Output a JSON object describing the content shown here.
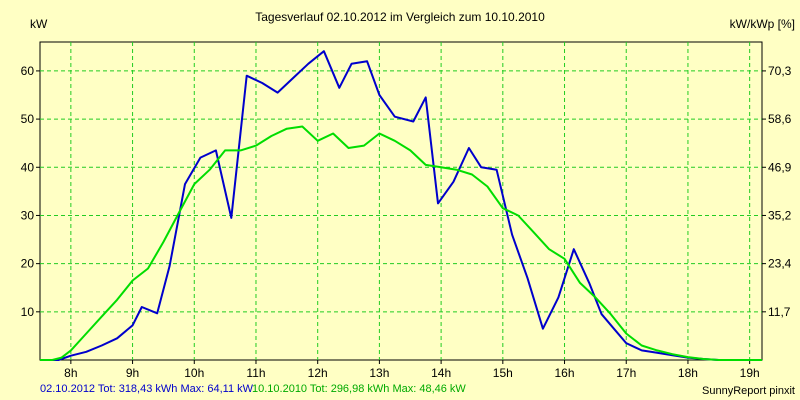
{
  "colors": {
    "background": "#ffffc4",
    "plot_bg": "#ffffc4",
    "grid": "#22cc22",
    "series_2012": "#0000cc",
    "series_2010": "#00dd00"
  },
  "footer": {
    "series_2012_summary": "02.10.2012 Tot: 318,43 kWh Max: 64,11 kW",
    "series_2010_summary": "10.10.2010 Tot: 296,98 kWh Max: 48,46 kW",
    "credit": "SunnyReport pinxit"
  },
  "chart_data": {
    "type": "line",
    "title": "Tagesverlauf 02.10.2012 im Vergleich zum 10.10.2010",
    "ylabel": "kW",
    "y2label": "kW/kWp [%]",
    "xlim": [
      7.5,
      19.2
    ],
    "ylim": [
      0,
      66
    ],
    "x_ticks": [
      8,
      9,
      10,
      11,
      12,
      13,
      14,
      15,
      16,
      17,
      18,
      19
    ],
    "x_tick_labels": [
      "8h",
      "9h",
      "10h",
      "11h",
      "12h",
      "13h",
      "14h",
      "15h",
      "16h",
      "17h",
      "18h",
      "19h"
    ],
    "y_ticks": [
      10,
      20,
      30,
      40,
      50,
      60
    ],
    "y_tick_labels": [
      "10",
      "20",
      "30",
      "40",
      "50",
      "60"
    ],
    "y2_ticks": [
      10,
      20,
      30,
      40,
      50,
      60
    ],
    "y2_tick_labels": [
      "11,7",
      "23,4",
      "35,2",
      "46,9",
      "58,6",
      "70,3"
    ],
    "grid": true,
    "series": [
      {
        "name": "02.10.2012",
        "color": "#0000cc",
        "x": [
          7.5,
          7.8,
          8.0,
          8.25,
          8.5,
          8.75,
          9.0,
          9.15,
          9.4,
          9.6,
          9.85,
          10.1,
          10.35,
          10.6,
          10.85,
          11.1,
          11.35,
          11.6,
          11.85,
          12.1,
          12.35,
          12.55,
          12.8,
          13.0,
          13.25,
          13.55,
          13.75,
          13.95,
          14.2,
          14.45,
          14.65,
          14.9,
          15.15,
          15.4,
          15.65,
          15.9,
          16.15,
          16.4,
          16.6,
          16.8,
          17.0,
          17.25,
          17.5,
          17.75,
          18.0,
          18.25,
          18.5,
          18.75,
          19.0,
          19.2
        ],
        "values": [
          0,
          0,
          0.9,
          1.7,
          3.0,
          4.5,
          7.2,
          11.0,
          9.7,
          19.5,
          36.5,
          42.0,
          43.5,
          29.5,
          59.0,
          57.5,
          55.5,
          58.5,
          61.5,
          64.1,
          56.5,
          61.5,
          62.0,
          55.0,
          50.5,
          49.5,
          54.5,
          32.5,
          37.0,
          44.0,
          40.0,
          39.5,
          26.0,
          17.0,
          6.5,
          13.0,
          23.0,
          16.0,
          9.5,
          6.5,
          3.5,
          2.0,
          1.5,
          1.0,
          0.5,
          0.2,
          0,
          0,
          0,
          0
        ]
      },
      {
        "name": "10.10.2010",
        "color": "#00dd00",
        "x": [
          7.5,
          7.7,
          7.85,
          8.0,
          8.25,
          8.5,
          8.75,
          9.0,
          9.25,
          9.5,
          9.75,
          10.0,
          10.25,
          10.5,
          10.75,
          11.0,
          11.25,
          11.5,
          11.75,
          12.0,
          12.25,
          12.5,
          12.75,
          13.0,
          13.25,
          13.5,
          13.75,
          14.0,
          14.25,
          14.5,
          14.75,
          15.0,
          15.25,
          15.5,
          15.75,
          16.0,
          16.25,
          16.5,
          16.75,
          17.0,
          17.25,
          17.5,
          17.75,
          18.0,
          18.25,
          18.5,
          18.75,
          19.0,
          19.2
        ],
        "values": [
          0,
          0,
          0.5,
          2.0,
          5.5,
          9.0,
          12.5,
          16.5,
          19.0,
          24.5,
          30.5,
          36.5,
          39.5,
          43.5,
          43.5,
          44.5,
          46.5,
          48.0,
          48.46,
          45.5,
          47.0,
          44.0,
          44.5,
          47.0,
          45.5,
          43.5,
          40.5,
          40.0,
          39.5,
          38.5,
          36.0,
          31.5,
          30.0,
          26.5,
          23.0,
          21.0,
          16.0,
          13.0,
          9.5,
          5.5,
          3.0,
          2.0,
          1.2,
          0.6,
          0.2,
          0,
          0,
          0,
          0
        ]
      }
    ]
  }
}
